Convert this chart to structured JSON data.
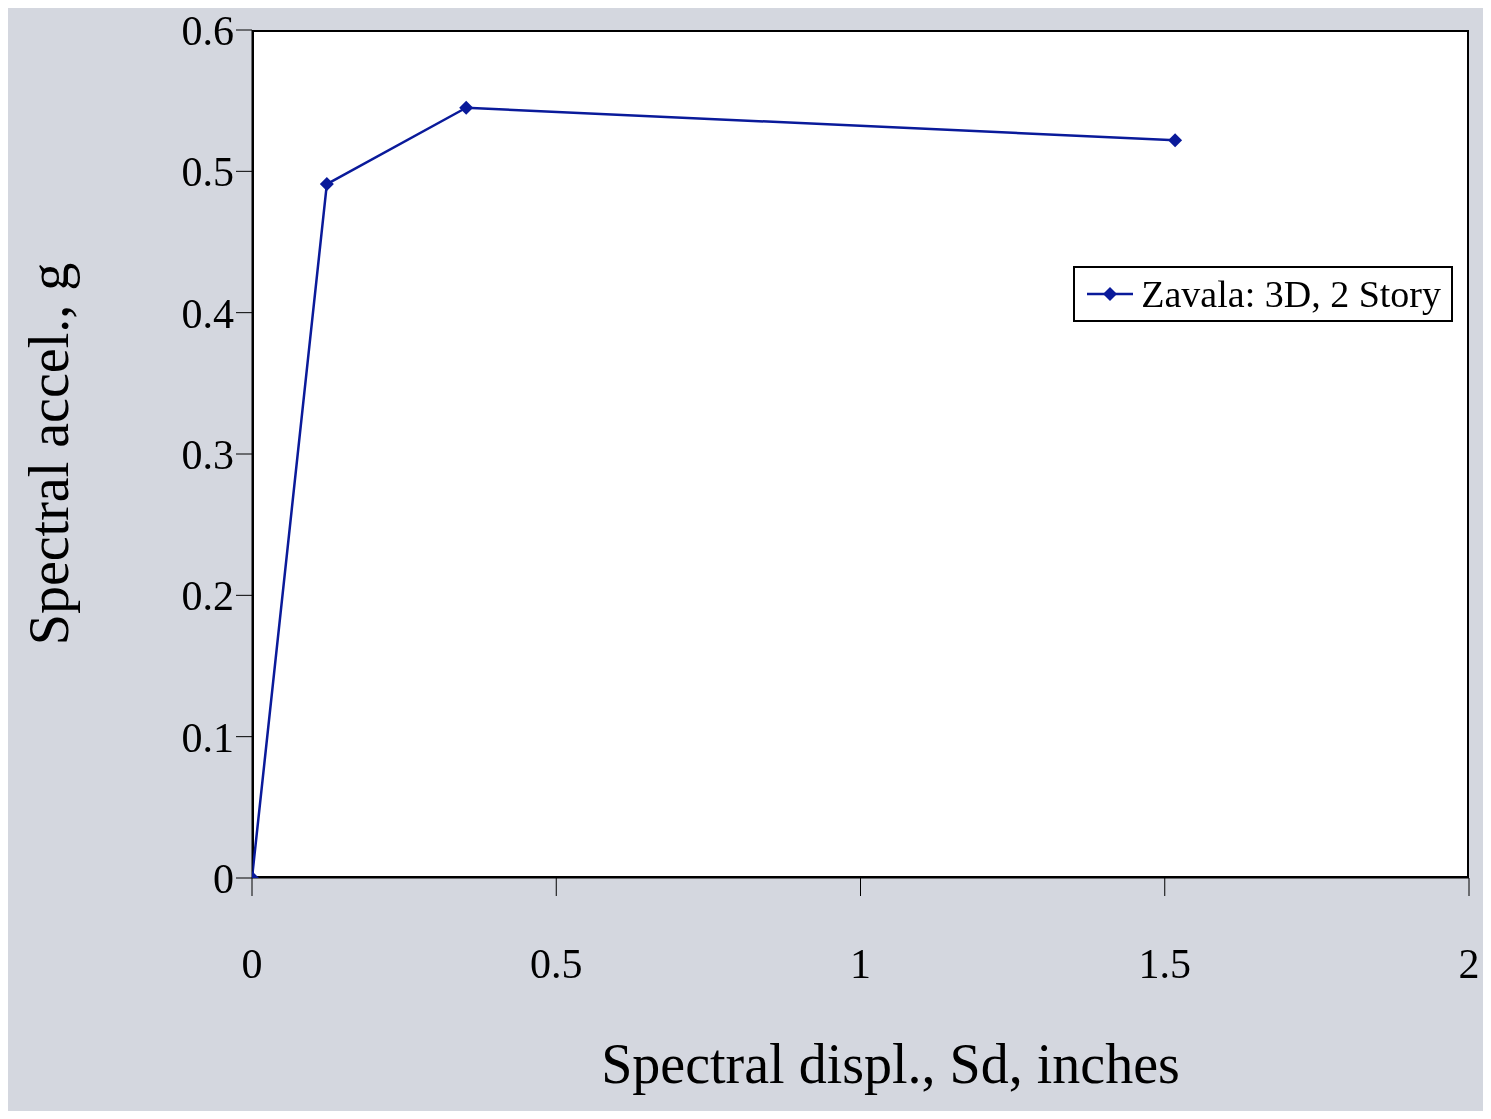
{
  "chart_data": {
    "type": "line",
    "xlabel": "Spectral displ., Sd, inches",
    "ylabel": "Spectral accel., g",
    "x": [
      0,
      0.123,
      0.352,
      1.517
    ],
    "series": [
      {
        "name": "Zavala: 3D, 2 Story",
        "color": "#0a1a9a",
        "values": [
          0,
          0.491,
          0.545,
          0.522
        ]
      }
    ],
    "xlim": [
      0,
      2
    ],
    "xticks": [
      0,
      0.5,
      1,
      1.5,
      2
    ],
    "ylim": [
      0,
      0.6
    ],
    "yticks": [
      0,
      0.1,
      0.2,
      0.3,
      0.4,
      0.5,
      0.6
    ],
    "grid": false,
    "legend": "right",
    "marker": "diamond",
    "line_style": "solid"
  }
}
